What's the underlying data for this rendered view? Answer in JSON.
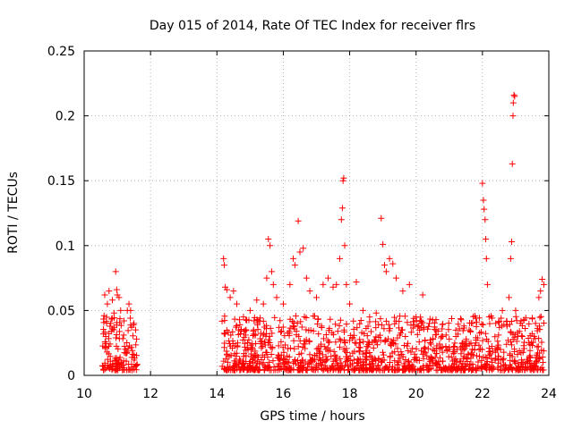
{
  "chart_data": {
    "type": "scatter",
    "title": "Day 015 of 2014, Rate Of TEC Index for receiver flrs",
    "xlabel": "GPS time / hours",
    "ylabel": "ROTI / TECUs",
    "xlim": [
      10,
      24
    ],
    "ylim": [
      0,
      0.25
    ],
    "x_ticks": [
      10,
      12,
      14,
      16,
      18,
      20,
      22,
      24
    ],
    "x_tick_labels": [
      "10",
      "12",
      "14",
      "16",
      "18",
      "20",
      "22",
      "24"
    ],
    "y_ticks": [
      0,
      0.05,
      0.1,
      0.15,
      0.2,
      0.25
    ],
    "y_tick_labels": [
      "0",
      "0.05",
      "0.1",
      "0.15",
      "0.2",
      "0.25"
    ],
    "grid": true,
    "marker": "plus",
    "marker_color": "#ff0000",
    "series": [
      {
        "name": "ROTI",
        "points": [
          [
            10.6,
            0.046
          ],
          [
            10.62,
            0.062
          ],
          [
            10.65,
            0.03
          ],
          [
            10.7,
            0.055
          ],
          [
            10.75,
            0.065
          ],
          [
            10.8,
            0.04
          ],
          [
            10.85,
            0.058
          ],
          [
            10.9,
            0.048
          ],
          [
            10.95,
            0.08
          ],
          [
            10.98,
            0.066
          ],
          [
            11.0,
            0.062
          ],
          [
            11.05,
            0.06
          ],
          [
            11.1,
            0.05
          ],
          [
            11.2,
            0.042
          ],
          [
            11.3,
            0.05
          ],
          [
            11.35,
            0.055
          ],
          [
            11.4,
            0.05
          ],
          [
            11.5,
            0.04
          ],
          [
            11.55,
            0.035
          ],
          [
            11.58,
            0.028
          ],
          [
            14.2,
            0.09
          ],
          [
            14.22,
            0.085
          ],
          [
            14.25,
            0.068
          ],
          [
            14.3,
            0.066
          ],
          [
            14.4,
            0.06
          ],
          [
            14.5,
            0.065
          ],
          [
            14.6,
            0.055
          ],
          [
            14.8,
            0.045
          ],
          [
            15.0,
            0.05
          ],
          [
            15.2,
            0.058
          ],
          [
            15.4,
            0.055
          ],
          [
            15.5,
            0.075
          ],
          [
            15.55,
            0.105
          ],
          [
            15.6,
            0.1
          ],
          [
            15.65,
            0.08
          ],
          [
            15.7,
            0.07
          ],
          [
            15.8,
            0.06
          ],
          [
            16.0,
            0.055
          ],
          [
            16.2,
            0.07
          ],
          [
            16.3,
            0.09
          ],
          [
            16.35,
            0.085
          ],
          [
            16.45,
            0.119
          ],
          [
            16.5,
            0.095
          ],
          [
            16.6,
            0.098
          ],
          [
            16.7,
            0.075
          ],
          [
            16.8,
            0.065
          ],
          [
            17.0,
            0.06
          ],
          [
            17.2,
            0.07
          ],
          [
            17.35,
            0.075
          ],
          [
            17.5,
            0.068
          ],
          [
            17.6,
            0.07
          ],
          [
            17.7,
            0.09
          ],
          [
            17.75,
            0.12
          ],
          [
            17.78,
            0.129
          ],
          [
            17.8,
            0.15
          ],
          [
            17.82,
            0.152
          ],
          [
            17.85,
            0.1
          ],
          [
            17.9,
            0.07
          ],
          [
            18.0,
            0.055
          ],
          [
            18.2,
            0.072
          ],
          [
            18.4,
            0.05
          ],
          [
            18.6,
            0.045
          ],
          [
            18.8,
            0.048
          ],
          [
            18.95,
            0.121
          ],
          [
            19.0,
            0.101
          ],
          [
            19.05,
            0.085
          ],
          [
            19.1,
            0.08
          ],
          [
            19.2,
            0.09
          ],
          [
            19.3,
            0.086
          ],
          [
            19.4,
            0.075
          ],
          [
            19.6,
            0.065
          ],
          [
            19.8,
            0.07
          ],
          [
            20.0,
            0.045
          ],
          [
            20.2,
            0.062
          ],
          [
            20.4,
            0.04
          ],
          [
            20.6,
            0.035
          ],
          [
            20.8,
            0.03
          ],
          [
            21.0,
            0.028
          ],
          [
            21.2,
            0.03
          ],
          [
            21.4,
            0.025
          ],
          [
            21.6,
            0.035
          ],
          [
            21.8,
            0.025
          ],
          [
            22.0,
            0.148
          ],
          [
            22.03,
            0.135
          ],
          [
            22.05,
            0.128
          ],
          [
            22.08,
            0.12
          ],
          [
            22.1,
            0.105
          ],
          [
            22.12,
            0.09
          ],
          [
            22.15,
            0.07
          ],
          [
            22.2,
            0.045
          ],
          [
            22.4,
            0.04
          ],
          [
            22.6,
            0.05
          ],
          [
            22.8,
            0.06
          ],
          [
            22.85,
            0.09
          ],
          [
            22.88,
            0.103
          ],
          [
            22.9,
            0.163
          ],
          [
            22.92,
            0.2
          ],
          [
            22.93,
            0.21
          ],
          [
            22.95,
            0.216
          ],
          [
            22.97,
            0.215
          ],
          [
            23.0,
            0.05
          ],
          [
            23.2,
            0.03
          ],
          [
            23.4,
            0.025
          ],
          [
            23.6,
            0.04
          ],
          [
            23.7,
            0.06
          ],
          [
            23.75,
            0.065
          ],
          [
            23.8,
            0.074
          ],
          [
            23.85,
            0.07
          ]
        ]
      }
    ]
  }
}
